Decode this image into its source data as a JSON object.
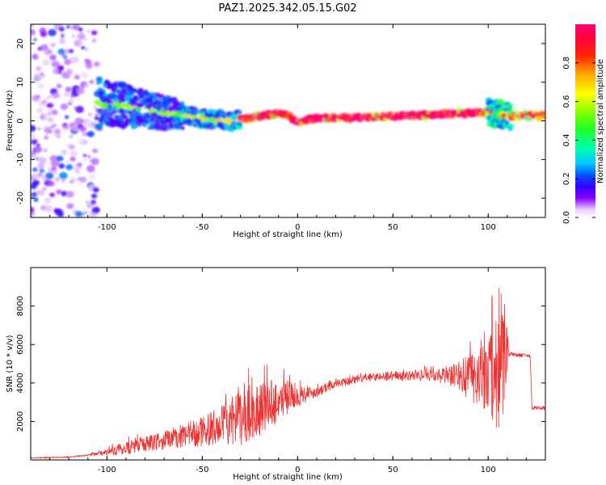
{
  "title": "PAZ1.2025.342.05.15.G02",
  "chart_data": [
    {
      "type": "heatmap",
      "name": "spectrogram",
      "xlabel": "Height of straight line (km)",
      "ylabel": "Frequency (Hz)",
      "xlim": [
        -140,
        130
      ],
      "ylim": [
        -25,
        25
      ],
      "xticks": [
        -100,
        -50,
        0,
        50,
        100
      ],
      "xtick_labels": [
        "-100",
        "-50",
        "0",
        "50",
        "100"
      ],
      "yticks": [
        -20,
        -10,
        0,
        10,
        20
      ],
      "ytick_labels": [
        "-20",
        "-10",
        "0",
        "10",
        "20"
      ],
      "centroid_frequency": {
        "x": [
          -105,
          -95,
          -85,
          -75,
          -65,
          -55,
          -45,
          -35,
          -30,
          -20,
          -10,
          -5,
          0,
          5,
          10,
          30,
          50,
          70,
          90,
          100,
          105,
          110,
          120,
          130
        ],
        "y": [
          4.5,
          4,
          3.5,
          2.5,
          1.8,
          1,
          0.5,
          0,
          0.5,
          1.2,
          2,
          1.5,
          -0.5,
          0.3,
          0.8,
          0.8,
          1.2,
          1.6,
          2,
          2.3,
          1.5,
          1.2,
          1.5,
          1.5
        ]
      },
      "colorbar": {
        "label": "Normalized spectral amplitude",
        "range": [
          0,
          1
        ],
        "ticks": [
          0,
          0.2,
          0.4,
          0.6,
          0.8
        ],
        "tick_labels": [
          "0.0",
          "0.2",
          "0.4",
          "0.6",
          "0.8"
        ]
      }
    },
    {
      "type": "line",
      "name": "snr",
      "xlabel": "Height of straight line (km)",
      "ylabel": "SNR (10 * v/v)",
      "xlim": [
        -140,
        130
      ],
      "ylim": [
        0,
        10000
      ],
      "xticks": [
        -100,
        -50,
        0,
        50,
        100
      ],
      "xtick_labels": [
        "-100",
        "-50",
        "0",
        "50",
        "100"
      ],
      "yticks": [
        2000,
        4000,
        6000,
        8000
      ],
      "ytick_labels": [
        "2000",
        "4000",
        "6000",
        "8000"
      ],
      "color": "#ee3333",
      "x": [
        -140,
        -120,
        -110,
        -100,
        -95,
        -90,
        -85,
        -80,
        -75,
        -70,
        -65,
        -60,
        -55,
        -50,
        -45,
        -40,
        -35,
        -30,
        -25,
        -20,
        -15,
        -10,
        -5,
        0,
        5,
        10,
        15,
        20,
        25,
        30,
        35,
        40,
        45,
        50,
        55,
        60,
        65,
        70,
        75,
        80,
        85,
        90,
        95,
        100,
        103,
        105,
        108,
        110,
        111,
        112,
        115,
        120,
        122,
        123,
        125,
        130
      ],
      "y": [
        100,
        150,
        250,
        400,
        500,
        600,
        750,
        850,
        950,
        1050,
        1100,
        1200,
        1350,
        1500,
        1650,
        1800,
        1950,
        2150,
        2400,
        2650,
        2900,
        3100,
        3300,
        3350,
        3450,
        3550,
        3750,
        3950,
        4050,
        4150,
        4250,
        4300,
        4350,
        4350,
        4350,
        4400,
        4400,
        4400,
        4350,
        4300,
        4350,
        4300,
        4300,
        4450,
        4500,
        5000,
        4500,
        5600,
        5500,
        5500,
        5450,
        5450,
        5400,
        2700,
        2700,
        2650
      ],
      "noise_amplitude": [
        20,
        30,
        40,
        150,
        300,
        350,
        400,
        400,
        450,
        500,
        550,
        600,
        700,
        800,
        900,
        1000,
        1300,
        1500,
        1500,
        1500,
        1300,
        1200,
        900,
        600,
        400,
        300,
        250,
        200,
        200,
        200,
        200,
        200,
        250,
        250,
        250,
        250,
        300,
        300,
        400,
        600,
        800,
        1200,
        1500,
        2000,
        3000,
        3500,
        3000,
        1200,
        100,
        100,
        100,
        100,
        100,
        100,
        100,
        100
      ]
    }
  ]
}
